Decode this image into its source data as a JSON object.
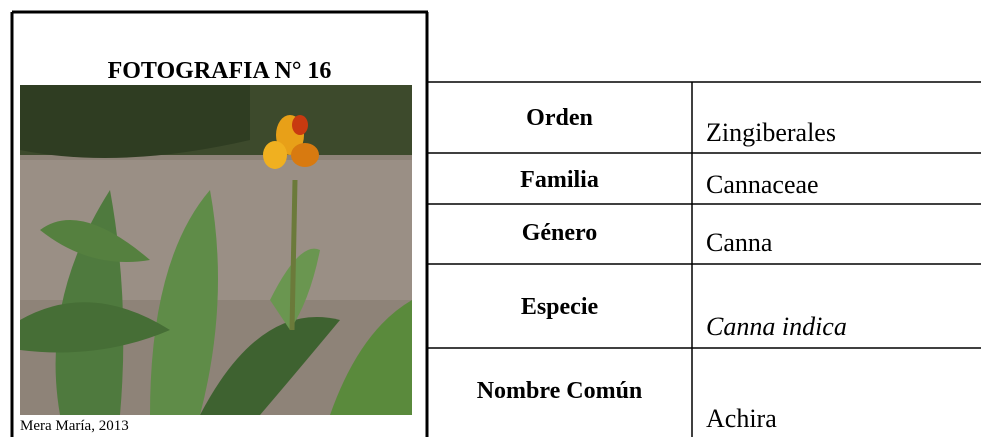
{
  "header": {
    "title": "FOTOGRAFIA N° 16"
  },
  "photo": {
    "caption": "Mera María, 2013"
  },
  "table": {
    "rows": [
      [
        "Orden",
        "Zingiberales"
      ],
      [
        "Familia",
        "Cannaceae"
      ],
      [
        "Género",
        "Canna"
      ],
      [
        "Especie",
        "Canna indica"
      ],
      [
        "Nombre Común",
        "Achira"
      ]
    ]
  }
}
